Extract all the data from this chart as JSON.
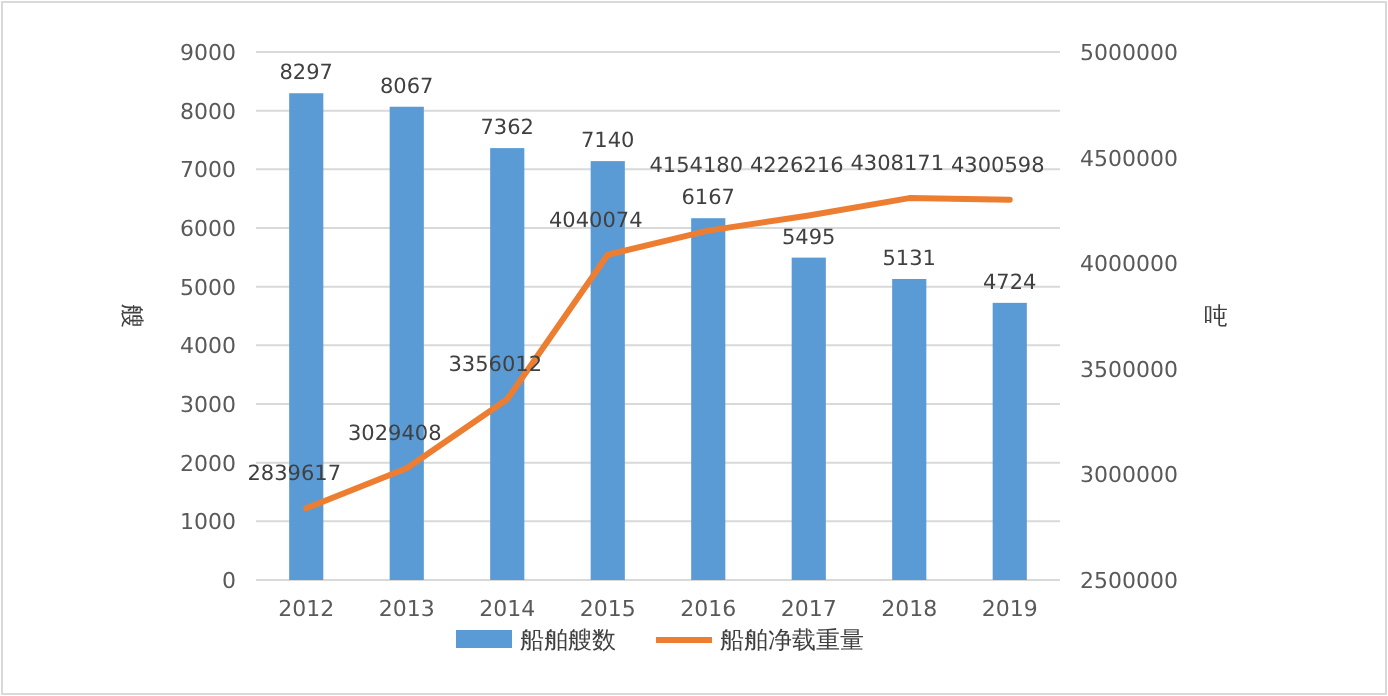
{
  "chart_data": {
    "type": "bar",
    "categories": [
      "2012",
      "2013",
      "2014",
      "2015",
      "2016",
      "2017",
      "2018",
      "2019"
    ],
    "series": [
      {
        "name": "船舶艘数",
        "color": "#5b9bd5",
        "values": [
          8297,
          8067,
          7362,
          7140,
          6167,
          5495,
          5131,
          4724
        ]
      },
      {
        "name": "船舶净载重量",
        "type": "line",
        "axis": "y2",
        "color": "#ed7d31",
        "values": [
          2839617,
          3029408,
          3356012,
          4040074,
          4154180,
          4226216,
          4308171,
          4300598
        ]
      }
    ],
    "ylabel": "艘",
    "y2label": "吨",
    "ylim": [
      0,
      9000
    ],
    "yticks": [
      0,
      1000,
      2000,
      3000,
      4000,
      5000,
      6000,
      7000,
      8000,
      9000
    ],
    "y2lim": [
      2500000,
      5000000
    ],
    "y2ticks": [
      2500000,
      3000000,
      3500000,
      4000000,
      4500000,
      5000000
    ],
    "grid": "y",
    "legend": "bottom",
    "data_labels": true,
    "marker": "none",
    "line_style": "solid"
  }
}
